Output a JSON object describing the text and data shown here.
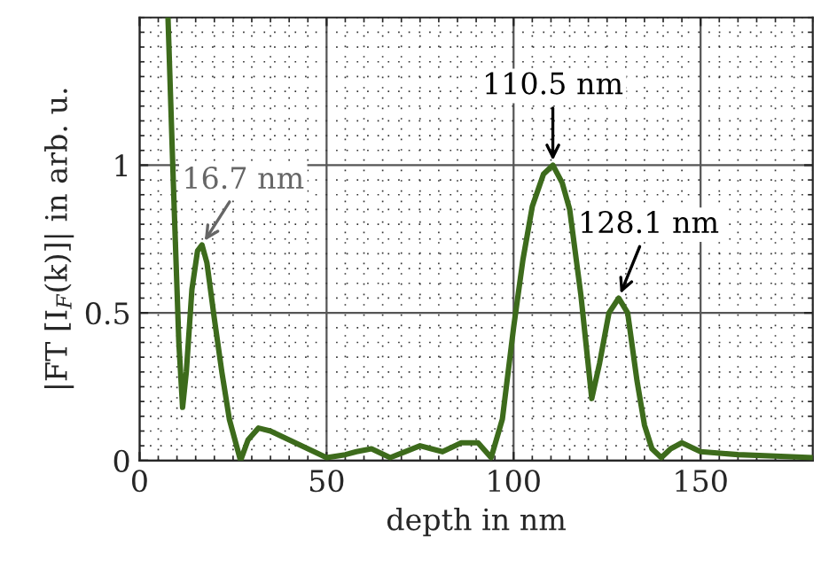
{
  "chart_data": {
    "type": "line",
    "xlabel": "depth in nm",
    "ylabel": "|FT [I$_{F}$(k)]| in arb. u.",
    "xlim": [
      0,
      180
    ],
    "ylim": [
      0,
      1.5
    ],
    "xticks": [
      0,
      50,
      100,
      150
    ],
    "yticks": [
      0,
      0.5,
      1
    ],
    "grid": true,
    "marker": "none",
    "line_style": "solid",
    "series": [
      {
        "color": "#3d6b1c",
        "x": [
          7.6,
          9,
          10.5,
          11.5,
          12.5,
          14,
          15.5,
          16.7,
          18,
          20,
          22,
          24,
          27,
          29,
          31.8,
          35,
          40,
          45,
          50,
          55,
          58,
          62,
          67,
          71,
          75,
          78,
          81,
          86,
          90.5,
          94,
          97,
          100,
          102.5,
          105,
          108,
          110.5,
          113,
          115,
          118,
          120.9,
          123,
          125.5,
          128.1,
          130.5,
          133,
          135,
          137,
          139.5,
          142,
          145,
          150,
          160,
          170,
          180
        ],
        "values": [
          1.5,
          0.95,
          0.4,
          0.18,
          0.3,
          0.58,
          0.71,
          0.73,
          0.67,
          0.48,
          0.3,
          0.14,
          0.0,
          0.07,
          0.11,
          0.1,
          0.07,
          0.04,
          0.01,
          0.02,
          0.03,
          0.04,
          0.01,
          0.03,
          0.05,
          0.04,
          0.03,
          0.06,
          0.06,
          0.01,
          0.14,
          0.45,
          0.68,
          0.86,
          0.97,
          1.0,
          0.94,
          0.85,
          0.56,
          0.21,
          0.33,
          0.5,
          0.55,
          0.5,
          0.27,
          0.12,
          0.04,
          0.01,
          0.04,
          0.06,
          0.03,
          0.02,
          0.015,
          0.01
        ]
      }
    ],
    "annotations": [
      {
        "text": "16.7 nm",
        "x": 16.7,
        "y": 0.73
      },
      {
        "text": "110.5 nm",
        "x": 110.5,
        "y": 1.0
      },
      {
        "text": "128.1 nm",
        "x": 128.1,
        "y": 0.55
      }
    ]
  }
}
